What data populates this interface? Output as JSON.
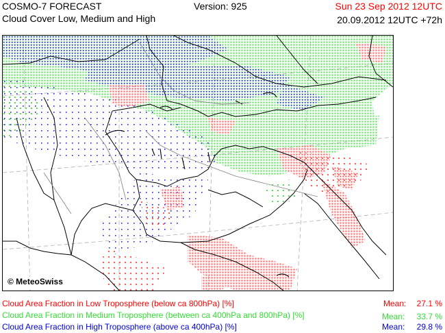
{
  "header": {
    "title": "COSMO-7 FORECAST",
    "subtitle": "Cloud Cover Low, Medium and High",
    "version": "Version: 925",
    "valid_time": "Sun 23 Sep 2012 12UTC",
    "run_time": "20.09.2012 12UTC +72h"
  },
  "map": {
    "copyright": "© MeteoSwiss",
    "layers": [
      {
        "name": "low",
        "color": "#ff6464"
      },
      {
        "name": "medium",
        "color": "#64e664"
      },
      {
        "name": "high",
        "color": "#2828ff"
      }
    ]
  },
  "legend": [
    {
      "label": "Cloud Area Fraction in Low Troposphere (below ca 800hPa) [%]",
      "mean_label": "Mean:",
      "mean_value": "27.1 %",
      "color": "#ff0000"
    },
    {
      "label": "Cloud Area Fraction in Medium Troposphere (between ca 400hPa and 800hPa) [%]",
      "mean_label": "Mean:",
      "mean_value": "33.7 %",
      "color": "#33dd33"
    },
    {
      "label": "Cloud Area Fraction in High Troposphere (above ca 400hPa) [%]",
      "mean_label": "Mean:",
      "mean_value": "29.8 %",
      "color": "#0000dd"
    }
  ]
}
